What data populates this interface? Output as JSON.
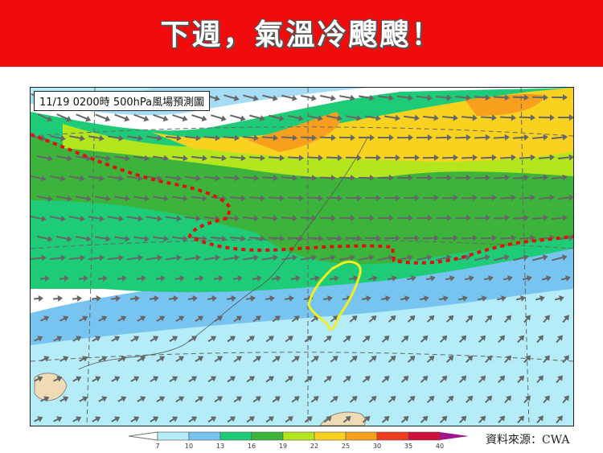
{
  "banner": {
    "title": "下週，氣溫冷颼颼！",
    "background": "#f00c0c"
  },
  "map": {
    "label": "11/19 0200時  500hPa風場預測圖",
    "highlight_region": "Taiwan",
    "highlight_color": "#f0f020",
    "boundary_line_color": "#e01010"
  },
  "colorbar": {
    "ticks": [
      "7",
      "10",
      "13",
      "16",
      "19",
      "22",
      "25",
      "30",
      "35",
      "40"
    ],
    "colors": [
      "#b4ecf8",
      "#78c4f0",
      "#1ecc78",
      "#3cb43c",
      "#b4e61e",
      "#f8d21e",
      "#f8a01e",
      "#f03c1e",
      "#d0103c",
      "#a0148c"
    ]
  },
  "source": "資料來源：CWA"
}
